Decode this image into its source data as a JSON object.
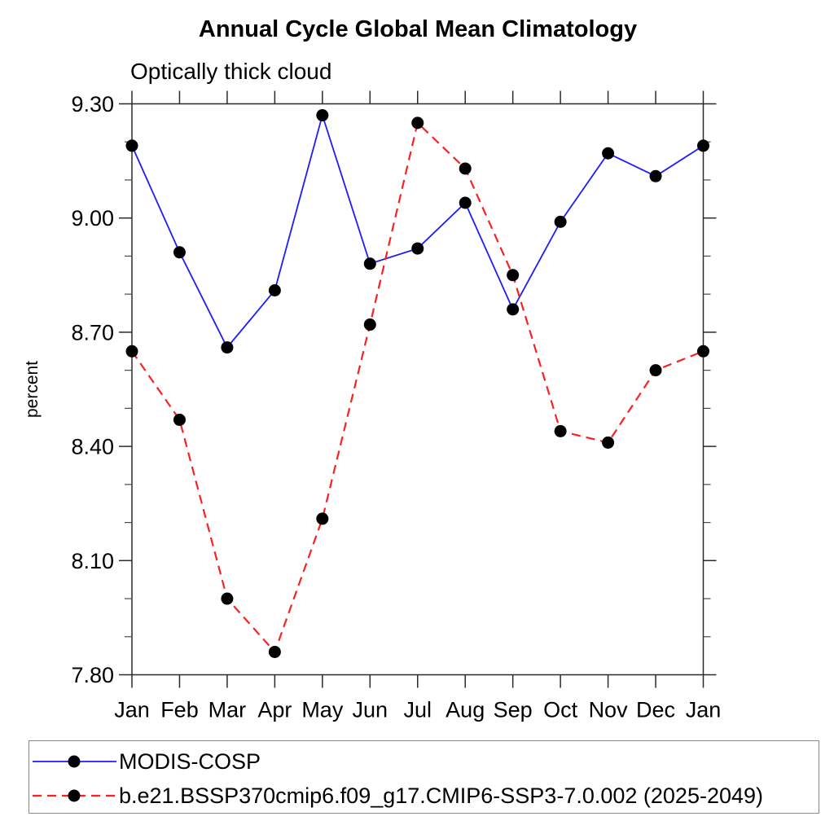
{
  "page": {
    "background": "#ffffff"
  },
  "title": "Annual Cycle Global Mean Climatology",
  "subtitle": "Optically thick cloud",
  "colors": {
    "frame": "#2a2a2a",
    "minor_tick": "#4a4a4a",
    "text": "#000000",
    "legend_border": "#888888",
    "marker": "#000000",
    "series_blue": "#1c1cff",
    "series_red": "#fa2121"
  },
  "chart_data": {
    "type": "line",
    "title": "Annual Cycle Global Mean Climatology",
    "subtitle": "Optically thick cloud",
    "xlabel": "",
    "ylabel": "percent",
    "categories": [
      "Jan",
      "Feb",
      "Mar",
      "Apr",
      "May",
      "Jun",
      "Jul",
      "Aug",
      "Sep",
      "Oct",
      "Nov",
      "Dec",
      "Jan"
    ],
    "ylim": [
      7.8,
      9.3
    ],
    "ytick_major": [
      7.8,
      8.1,
      8.4,
      8.7,
      9.0,
      9.3
    ],
    "ytick_labels": [
      "7.80",
      "8.10",
      "8.40",
      "8.70",
      "9.00",
      "9.30"
    ],
    "ytick_minor": [
      7.9,
      8.0,
      8.2,
      8.3,
      8.5,
      8.6,
      8.8,
      8.9,
      9.1,
      9.2
    ],
    "grid": false,
    "legend_position": "bottom-left-box",
    "series": [
      {
        "name": "MODIS-COSP",
        "color": "#1c1cff",
        "line_style": "solid",
        "marker": "filled-circle",
        "marker_color": "#000000",
        "values": [
          9.19,
          8.91,
          8.66,
          8.81,
          9.27,
          8.88,
          8.92,
          9.04,
          8.76,
          8.99,
          9.17,
          9.11,
          9.19
        ]
      },
      {
        "name": "b.e21.BSSP370cmip6.f09_g17.CMIP6-SSP3-7.0.002 (2025-2049)",
        "color": "#fa2121",
        "line_style": "dashed",
        "marker": "filled-circle",
        "marker_color": "#000000",
        "values": [
          8.65,
          8.47,
          8.0,
          7.86,
          8.21,
          8.72,
          9.25,
          9.13,
          8.85,
          8.44,
          8.41,
          8.6,
          8.65
        ]
      }
    ]
  }
}
